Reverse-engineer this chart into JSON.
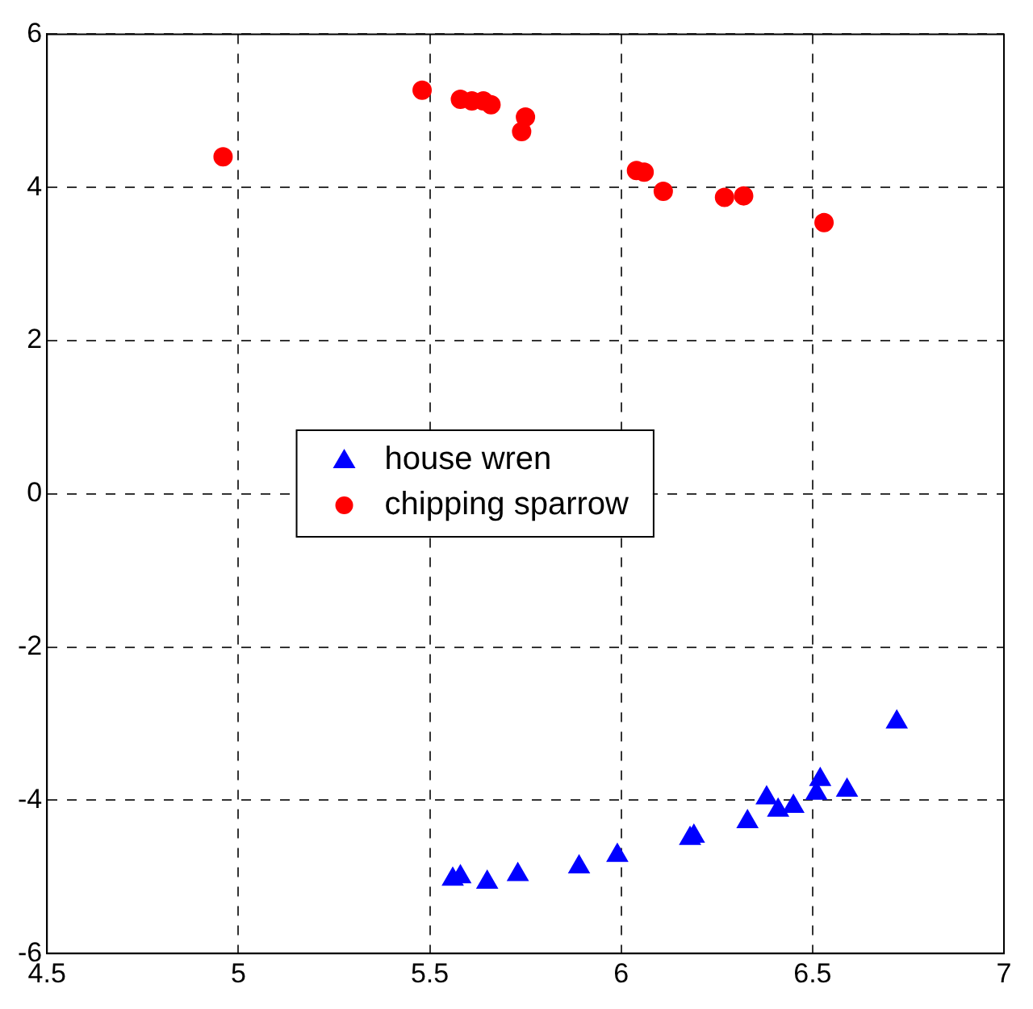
{
  "chart_data": {
    "type": "scatter",
    "xlim": [
      4.5,
      7
    ],
    "ylim": [
      -6,
      6
    ],
    "xticks": [
      4.5,
      5,
      5.5,
      6,
      6.5,
      7
    ],
    "yticks": [
      -6,
      -4,
      -2,
      0,
      2,
      4,
      6
    ],
    "grid": true,
    "legend": "center",
    "series": [
      {
        "name": "house wren",
        "color": "#0000ff",
        "marker": "triangle",
        "x": [
          5.56,
          5.58,
          5.65,
          5.73,
          5.89,
          5.99,
          6.18,
          6.19,
          6.33,
          6.38,
          6.41,
          6.45,
          6.51,
          6.52,
          6.59,
          6.72
        ],
        "values": [
          -5.03,
          -5.0,
          -5.07,
          -4.97,
          -4.87,
          -4.72,
          -4.5,
          -4.47,
          -4.28,
          -3.97,
          -4.13,
          -4.08,
          -3.91,
          -3.73,
          -3.87,
          -2.98
        ]
      },
      {
        "name": "chipping sparrow",
        "color": "#ff0000",
        "marker": "circle",
        "x": [
          4.96,
          5.48,
          5.58,
          5.61,
          5.64,
          5.66,
          5.74,
          5.75,
          6.04,
          6.06,
          6.11,
          6.27,
          6.32,
          6.53
        ],
        "values": [
          4.4,
          5.27,
          5.15,
          5.13,
          5.13,
          5.08,
          4.73,
          4.92,
          4.22,
          4.2,
          3.95,
          3.87,
          3.89,
          3.54
        ]
      }
    ]
  }
}
